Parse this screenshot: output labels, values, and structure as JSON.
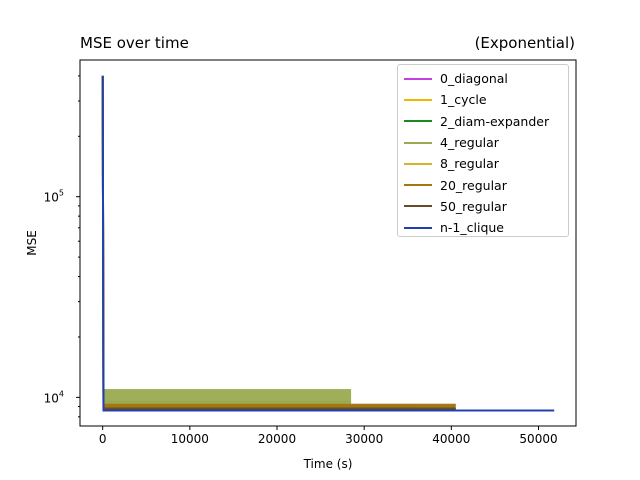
{
  "chart_data": {
    "type": "line",
    "title": "MSE over time",
    "subtitle": "(Exponential)",
    "xlabel": "Time (s)",
    "ylabel": "MSE",
    "yscale": "log",
    "xlim": [
      -2600,
      54300
    ],
    "ylim": [
      7200,
      480000
    ],
    "xticks": [
      0,
      10000,
      20000,
      30000,
      40000,
      50000
    ],
    "xtick_labels": [
      "0",
      "10000",
      "20000",
      "30000",
      "40000",
      "50000"
    ],
    "ytick_labels": [
      "10^4",
      "10^5"
    ],
    "ytick_values": [
      10000,
      100000
    ],
    "legend_position": "top-right",
    "grid": false,
    "series": [
      {
        "name": "0_diagonal",
        "color": "#c040e0",
        "x": [
          0,
          100,
          40500
        ],
        "y": [
          400000,
          8700,
          8700
        ]
      },
      {
        "name": "1_cycle",
        "color": "#f0b800",
        "x": [
          0,
          100,
          40500
        ],
        "y": [
          400000,
          8850,
          8850
        ]
      },
      {
        "name": "2_diam-expander",
        "color": "#1a8a1a",
        "x": [
          0,
          100,
          40500
        ],
        "y": [
          400000,
          8750,
          8750
        ]
      },
      {
        "name": "4_regular",
        "color": "#9aaa50",
        "x": [
          0,
          100,
          28500
        ],
        "y": [
          400000,
          9500,
          9500
        ],
        "band": [
          8900,
          11000
        ]
      },
      {
        "name": "8_regular",
        "color": "#d4b428",
        "x": [
          0,
          100,
          36000
        ],
        "y": [
          400000,
          9000,
          9000
        ]
      },
      {
        "name": "20_regular",
        "color": "#a07810",
        "x": [
          0,
          100,
          40500
        ],
        "y": [
          400000,
          9100,
          9100
        ],
        "band": [
          8800,
          9300
        ]
      },
      {
        "name": "50_regular",
        "color": "#6b4a2a",
        "x": [
          0,
          100,
          40500
        ],
        "y": [
          400000,
          8800,
          8800
        ]
      },
      {
        "name": "n-1_clique",
        "color": "#2040b0",
        "x": [
          0,
          100,
          51800
        ],
        "y": [
          400000,
          8600,
          8600
        ]
      }
    ]
  }
}
